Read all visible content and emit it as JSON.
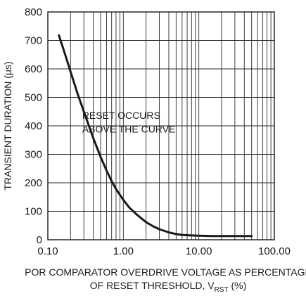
{
  "chart_data": {
    "type": "line",
    "title": "",
    "xlabel_line1": "POR COMPARATOR OVERDRIVE VOLTAGE AS PERCENTAGE",
    "xlabel_line2_prefix": "OF RESET THRESHOLD, V",
    "xlabel_line2_sub": "RST",
    "xlabel_line2_suffix": " (%)",
    "ylabel": "TRANSIENT DURATION (µs)",
    "xscale": "log",
    "xlim": [
      0.1,
      100
    ],
    "ylim": [
      0,
      800
    ],
    "x_ticks": [
      0.1,
      1,
      10,
      100
    ],
    "x_tick_labels": [
      "0.10",
      "1.00",
      "10.00",
      "100.00"
    ],
    "y_ticks": [
      0,
      100,
      200,
      300,
      400,
      500,
      600,
      700,
      800
    ],
    "y_tick_labels": [
      "0",
      "100",
      "200",
      "300",
      "400",
      "500",
      "600",
      "700",
      "800"
    ],
    "grid": true,
    "annotation": [
      "RESET OCCURS",
      "ABOVE THE CURVE"
    ],
    "series": [
      {
        "x": [
          0.14,
          0.17,
          0.2,
          0.25,
          0.3,
          0.35,
          0.4,
          0.5,
          0.6,
          0.7,
          0.8,
          1.0,
          1.2,
          1.5,
          2.0,
          2.5,
          3.0,
          4.0,
          5.0,
          6.0,
          8.0,
          10.0,
          15.0,
          20.0,
          30.0,
          50.0
        ],
        "y": [
          718,
          650,
          590,
          510,
          450,
          400,
          357,
          291,
          243,
          206,
          178,
          140,
          113,
          89,
          62,
          47,
          37,
          26,
          20,
          17,
          15,
          14,
          13,
          13,
          13,
          13
        ]
      }
    ]
  }
}
